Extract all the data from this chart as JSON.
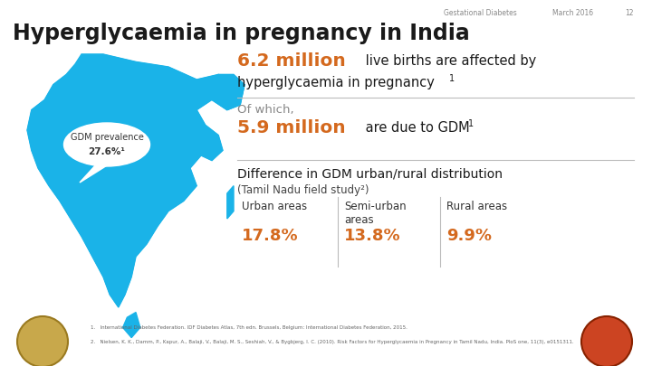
{
  "bg_color": "#ffffff",
  "header_text": "Gestational Diabetes",
  "header_date": "March 2016",
  "header_page": "12",
  "header_color": "#888888",
  "title": "Hyperglycaemia in pregnancy in India",
  "title_color": "#1a1a1a",
  "title_fontsize": 17,
  "stat1_big": "6.2 million",
  "stat1_big_color": "#d4691e",
  "stat1_rest1": " live births are affected by",
  "stat1_rest2": "hyperglycaemia in pregnancy",
  "stat1_sup": "1",
  "stat1_rest_color": "#1a1a1a",
  "stat2_prefix": "Of which,",
  "stat2_prefix_color": "#888888",
  "stat2_big": "5.9 million",
  "stat2_big_color": "#d4691e",
  "stat2_rest": " are due to GDM",
  "stat2_sup": "1",
  "stat2_rest_color": "#1a1a1a",
  "dist_title": "Difference in GDM urban/rural distribution",
  "dist_subtitle": "(Tamil Nadu field study²)",
  "dist_title_color": "#1a1a1a",
  "dist_subtitle_color": "#444444",
  "urban_label": "Urban areas",
  "urban_value": "17.8%",
  "semiurban_label": "Semi-urban\nareas",
  "semiurban_value": "13.8%",
  "rural_label": "Rural areas",
  "rural_value": "9.9%",
  "area_label_color": "#333333",
  "area_value_color": "#d4691e",
  "map_color": "#1ab3e8",
  "bubble_text_color": "#333333",
  "gdm_line1": "GDM prevalence",
  "gdm_line2": "27.6%¹",
  "footnote1": "1.   International Diabetes Federation. IDF Diabetes Atlas, 7th edn. Brussels, Belgium: International Diabetes Federation, 2015.",
  "footnote2": "2.   Nielsen, K. K., Damm, P., Kapur, A., Balaji, V., Balaji, M. S., Seshiah, V., & Bygbjerg, I. C. (2010). Risk Factors for Hyperglycaemia in Pregnancy in Tamil Nadu, India. PloS one, 11(3), e0151311.",
  "footnote_color": "#666666",
  "divider_color": "#bbbbbb",
  "cl": 0.365
}
